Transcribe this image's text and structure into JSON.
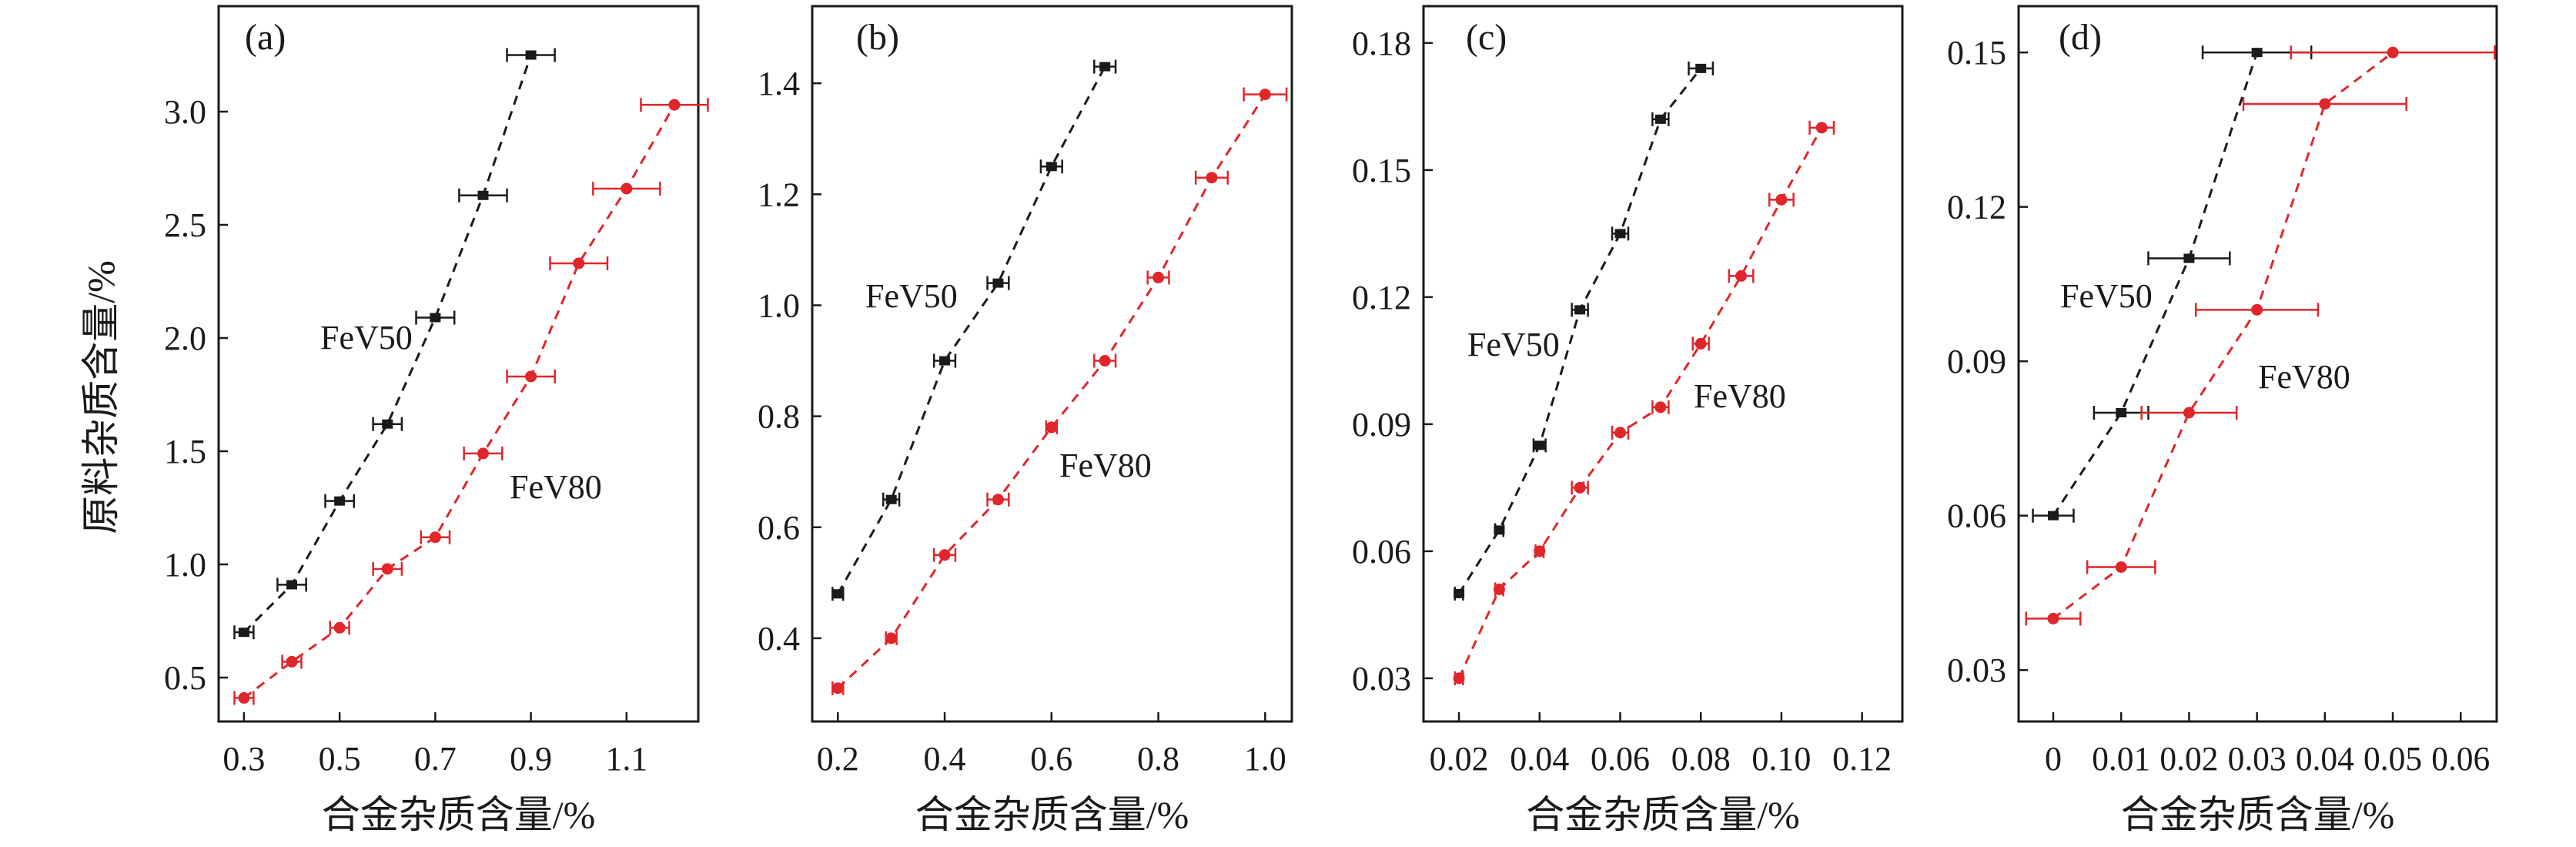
{
  "figure": {
    "y_axis_label": "原料杂质含量/%",
    "colors": {
      "FeV50": "#1a1a1a",
      "FeV80": "#e0262b",
      "axis": "#1a1a1a"
    }
  },
  "chart_data": [
    {
      "type": "scatter",
      "panel_label": "(a)",
      "xlabel": "合金杂质含量/%",
      "ylabel": "原料杂质含量/%",
      "xlim": [
        0.247,
        1.25
      ],
      "ylim": [
        0.306,
        3.466
      ],
      "xticks": [
        0.3,
        0.5,
        0.7,
        0.9,
        1.1
      ],
      "xtick_labels": [
        "0.3",
        "0.5",
        "0.7",
        "0.9",
        "1.1"
      ],
      "yticks": [
        0.5,
        1.0,
        1.5,
        2.0,
        2.5,
        3.0
      ],
      "ytick_labels": [
        "0.5",
        "1.0",
        "1.5",
        "2.0",
        "2.5",
        "3.0"
      ],
      "grid": false,
      "series": [
        {
          "name": "FeV50",
          "marker": "square",
          "color": "#1a1a1a",
          "line": "dashed",
          "x": [
            0.3,
            0.4,
            0.5,
            0.6,
            0.7,
            0.8,
            0.9
          ],
          "y": [
            0.7,
            0.91,
            1.28,
            1.62,
            2.09,
            2.63,
            3.25
          ],
          "xerr": [
            0.02,
            0.03,
            0.03,
            0.03,
            0.04,
            0.05,
            0.05
          ]
        },
        {
          "name": "FeV80",
          "marker": "circle",
          "color": "#e0262b",
          "line": "dashed",
          "x": [
            0.3,
            0.4,
            0.5,
            0.6,
            0.7,
            0.8,
            0.9,
            1.0,
            1.1,
            1.2
          ],
          "y": [
            0.41,
            0.57,
            0.72,
            0.98,
            1.12,
            1.49,
            1.83,
            2.33,
            2.66,
            3.03
          ],
          "xerr": [
            0.02,
            0.02,
            0.02,
            0.03,
            0.03,
            0.04,
            0.05,
            0.06,
            0.07,
            0.07
          ]
        }
      ]
    },
    {
      "type": "scatter",
      "panel_label": "(b)",
      "xlabel": "合金杂质含量/%",
      "xlim": [
        0.152,
        1.05
      ],
      "ylim": [
        0.25,
        1.539
      ],
      "xticks": [
        0.2,
        0.4,
        0.6,
        0.8,
        1.0
      ],
      "xtick_labels": [
        "0.2",
        "0.4",
        "0.6",
        "0.8",
        "1.0"
      ],
      "yticks": [
        0.4,
        0.6,
        0.8,
        1.0,
        1.2,
        1.4
      ],
      "ytick_labels": [
        "0.4",
        "0.6",
        "0.8",
        "1.0",
        "1.2",
        "1.4"
      ],
      "grid": false,
      "series": [
        {
          "name": "FeV50",
          "marker": "square",
          "color": "#1a1a1a",
          "line": "dashed",
          "x": [
            0.2,
            0.3,
            0.4,
            0.5,
            0.6,
            0.7
          ],
          "y": [
            0.48,
            0.65,
            0.9,
            1.04,
            1.25,
            1.43
          ],
          "xerr": [
            0.01,
            0.015,
            0.02,
            0.02,
            0.02,
            0.02
          ]
        },
        {
          "name": "FeV80",
          "marker": "circle",
          "color": "#e0262b",
          "line": "dashed",
          "x": [
            0.2,
            0.3,
            0.4,
            0.5,
            0.6,
            0.7,
            0.8,
            0.9,
            1.0
          ],
          "y": [
            0.31,
            0.4,
            0.55,
            0.65,
            0.78,
            0.9,
            1.05,
            1.23,
            1.38
          ],
          "xerr": [
            0.01,
            0.01,
            0.02,
            0.02,
            0.01,
            0.02,
            0.02,
            0.03,
            0.04
          ]
        }
      ]
    },
    {
      "type": "scatter",
      "panel_label": "(c)",
      "xlabel": "合金杂质含量/%",
      "xlim": [
        0.0112,
        0.13
      ],
      "ylim": [
        0.0198,
        0.1887
      ],
      "xticks": [
        0.02,
        0.04,
        0.06,
        0.08,
        0.1,
        0.12
      ],
      "xtick_labels": [
        "0.02",
        "0.04",
        "0.06",
        "0.08",
        "0.10",
        "0.12"
      ],
      "yticks": [
        0.03,
        0.06,
        0.09,
        0.12,
        0.15,
        0.18
      ],
      "ytick_labels": [
        "0.03",
        "0.06",
        "0.09",
        "0.12",
        "0.15",
        "0.18"
      ],
      "grid": false,
      "series": [
        {
          "name": "FeV50",
          "marker": "square",
          "color": "#1a1a1a",
          "line": "dashed",
          "x": [
            0.02,
            0.03,
            0.04,
            0.05,
            0.06,
            0.07,
            0.08
          ],
          "y": [
            0.05,
            0.065,
            0.085,
            0.117,
            0.135,
            0.162,
            0.174
          ],
          "xerr": [
            0.001,
            0.001,
            0.0015,
            0.002,
            0.002,
            0.002,
            0.003
          ]
        },
        {
          "name": "FeV80",
          "marker": "circle",
          "color": "#e0262b",
          "line": "dashed",
          "x": [
            0.02,
            0.03,
            0.04,
            0.05,
            0.06,
            0.07,
            0.08,
            0.09,
            0.1,
            0.11
          ],
          "y": [
            0.03,
            0.051,
            0.06,
            0.075,
            0.088,
            0.094,
            0.109,
            0.125,
            0.143,
            0.16
          ],
          "xerr": [
            0.001,
            0.001,
            0.001,
            0.002,
            0.002,
            0.002,
            0.002,
            0.003,
            0.003,
            0.003
          ]
        }
      ]
    },
    {
      "type": "scatter",
      "panel_label": "(d)",
      "xlabel": "合金杂质含量/%",
      "xlim": [
        -0.0051,
        0.0653
      ],
      "ylim": [
        0.02,
        0.159
      ],
      "xticks": [
        0,
        0.01,
        0.02,
        0.03,
        0.04,
        0.05,
        0.06
      ],
      "xtick_labels": [
        "0",
        "0.01",
        "0.02",
        "0.03",
        "0.04",
        "0.05",
        "0.06"
      ],
      "yticks": [
        0.03,
        0.06,
        0.09,
        0.12,
        0.15
      ],
      "ytick_labels": [
        "0.03",
        "0.06",
        "0.09",
        "0.12",
        "0.15"
      ],
      "grid": false,
      "series": [
        {
          "name": "FeV50",
          "marker": "square",
          "color": "#1a1a1a",
          "line": "dashed",
          "x": [
            0,
            0.01,
            0.02,
            0.03
          ],
          "y": [
            0.06,
            0.08,
            0.11,
            0.15
          ],
          "xerr": [
            0.003,
            0.004,
            0.006,
            0.008
          ]
        },
        {
          "name": "FeV80",
          "marker": "circle",
          "color": "#e0262b",
          "line": "dashed",
          "x": [
            0,
            0.01,
            0.02,
            0.03,
            0.04,
            0.05
          ],
          "y": [
            0.04,
            0.05,
            0.08,
            0.1,
            0.14,
            0.15
          ],
          "xerr": [
            0.004,
            0.005,
            0.007,
            0.009,
            0.012,
            0.015
          ]
        }
      ]
    }
  ]
}
